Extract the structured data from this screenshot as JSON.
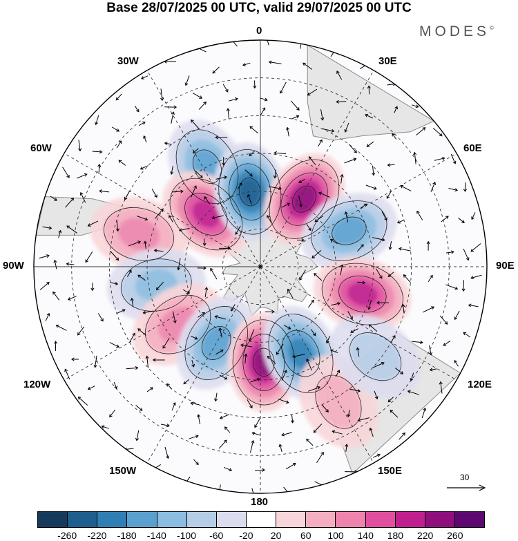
{
  "title": "Base 28/07/2025 00 UTC, valid 29/07/2025 00 UTC",
  "brand": "MODES",
  "brand_mark": "©",
  "longitude_labels": {
    "top": "0",
    "bottom": "180",
    "left": "90W",
    "right": "90E",
    "top_left": "30W",
    "top_right": "30E",
    "upper_left": "60W",
    "upper_right": "60E",
    "lower_left": "120W",
    "lower_right": "120E",
    "bottom_left": "150W",
    "bottom_right": "150E"
  },
  "vector_scale_label": "30",
  "colorbar": {
    "colors": [
      "#153a5c",
      "#1d5e8e",
      "#2f7fb4",
      "#5aa1cf",
      "#8bbde0",
      "#b6cde6",
      "#dcdcef",
      "#ffffff",
      "#f8d5d8",
      "#f4aebf",
      "#ee84ad",
      "#e04f9f",
      "#c0208f",
      "#8f0f7d",
      "#5c0870"
    ],
    "tick_labels": [
      "-260",
      "-220",
      "-180",
      "-140",
      "-100",
      "-60",
      "-20",
      "20",
      "60",
      "100",
      "140",
      "180",
      "220",
      "260"
    ]
  },
  "map_style": {
    "continent_fill": "#e6e6e6",
    "coast_color": "#8a8a8a"
  },
  "anomaly_centers": [
    {
      "name": "low-30W",
      "lon": -28,
      "colat": 45,
      "level": -4
    },
    {
      "name": "high-45W",
      "lon": -46,
      "colat": 30,
      "level": 5
    },
    {
      "name": "low-10W",
      "lon": -8,
      "colat": 30,
      "level": -6
    },
    {
      "name": "high-35E",
      "lon": 33,
      "colat": 32,
      "level": 6
    },
    {
      "name": "low-65E",
      "lon": 68,
      "colat": 38,
      "level": -4
    },
    {
      "name": "high-105E",
      "lon": 105,
      "colat": 42,
      "level": 5
    },
    {
      "name": "high-75W",
      "lon": -75,
      "colat": 50,
      "level": 3
    },
    {
      "name": "low-100W",
      "lon": -100,
      "colat": 42,
      "level": -3
    },
    {
      "name": "high-120W",
      "lon": -125,
      "colat": 40,
      "level": 3
    },
    {
      "name": "low-150W",
      "lon": -150,
      "colat": 35,
      "level": -4
    },
    {
      "name": "high-175E",
      "lon": 178,
      "colat": 38,
      "level": 6
    },
    {
      "name": "low-155E",
      "lon": 155,
      "colat": 38,
      "level": -5
    },
    {
      "name": "high-150E",
      "lon": 150,
      "colat": 62,
      "level": 2
    },
    {
      "name": "low-130E",
      "lon": 128,
      "colat": 58,
      "level": -2
    }
  ]
}
